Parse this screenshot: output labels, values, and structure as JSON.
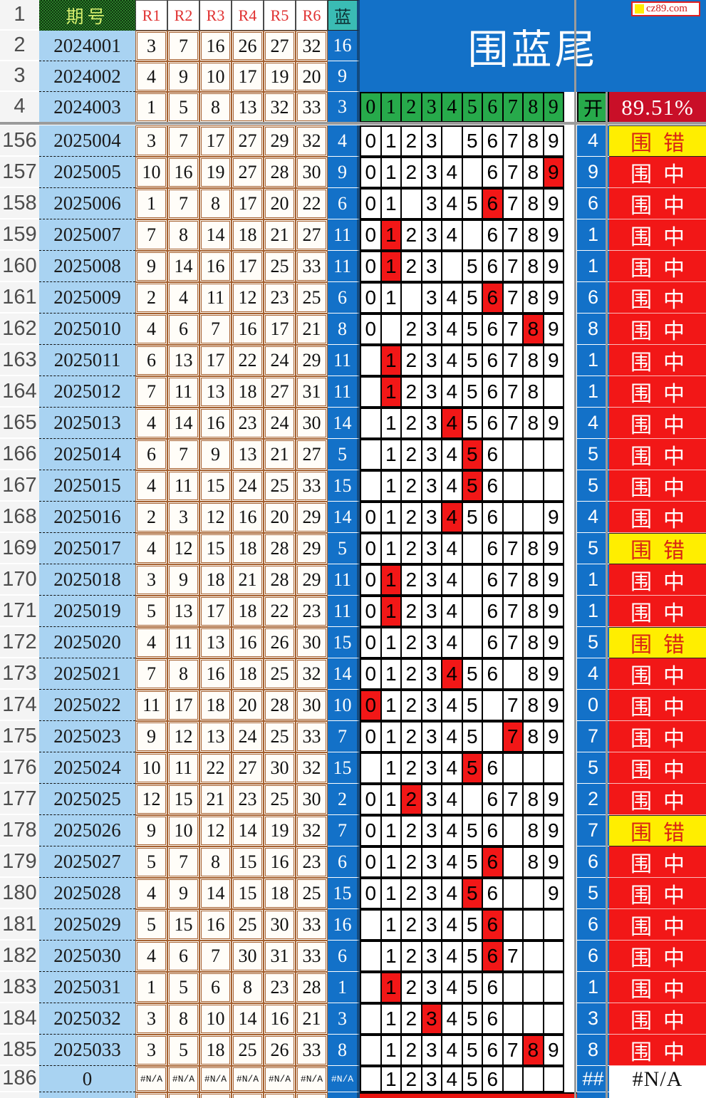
{
  "watermark": "cz89.com",
  "title": "围蓝尾",
  "stats": {
    "accuracy": "89.51%"
  },
  "header": {
    "row_number": "1",
    "period_label": "期号",
    "red_labels": [
      "R1",
      "R2",
      "R3",
      "R4",
      "R5",
      "R6"
    ],
    "blue_label": "蓝",
    "digit_header": [
      "0",
      "1",
      "2",
      "3",
      "4",
      "5",
      "6",
      "7",
      "8",
      "9"
    ],
    "open_label": "开"
  },
  "colors": {
    "banner_blue": "#1371c8",
    "cell_blue": "#1371c8",
    "teal_header": "#3abcb4",
    "green_row": "#27aa4b",
    "pattern_green": "#2a7f2a",
    "hit_red": "#f21717",
    "accuracy_red": "#c90f28",
    "miss_yellow": "#ffee00",
    "miss_text_red": "#d92413",
    "period_blue": "#a9d3f2",
    "border_brown": "#a5602f"
  },
  "result_labels": {
    "hit": "围中",
    "miss": "围错",
    "na": "#N/A"
  },
  "top_rows": [
    {
      "row": "2",
      "period": "2024001",
      "reds": [
        "3",
        "7",
        "16",
        "26",
        "27",
        "32"
      ],
      "blue": "16"
    },
    {
      "row": "3",
      "period": "2024002",
      "reds": [
        "4",
        "9",
        "10",
        "17",
        "19",
        "20"
      ],
      "blue": "9"
    },
    {
      "row": "4",
      "period": "2024003",
      "reds": [
        "1",
        "5",
        "8",
        "13",
        "32",
        "33"
      ],
      "blue": "3"
    }
  ],
  "rows": [
    {
      "row": "156",
      "period": "2025004",
      "reds": [
        "3",
        "7",
        "17",
        "27",
        "29",
        "32"
      ],
      "blue": "4",
      "digits": [
        0,
        1,
        2,
        3,
        5,
        6,
        7,
        8,
        9
      ],
      "hit": null,
      "open": "4",
      "result": "围错",
      "type": "miss"
    },
    {
      "row": "157",
      "period": "2025005",
      "reds": [
        "10",
        "16",
        "19",
        "27",
        "28",
        "30"
      ],
      "blue": "9",
      "digits": [
        0,
        1,
        2,
        3,
        4,
        6,
        7,
        8,
        9
      ],
      "hit": 9,
      "open": "9",
      "result": "围中",
      "type": "hit"
    },
    {
      "row": "158",
      "period": "2025006",
      "reds": [
        "1",
        "7",
        "8",
        "17",
        "20",
        "22"
      ],
      "blue": "6",
      "digits": [
        0,
        1,
        3,
        4,
        5,
        6,
        7,
        8,
        9
      ],
      "hit": 6,
      "open": "6",
      "result": "围中",
      "type": "hit"
    },
    {
      "row": "159",
      "period": "2025007",
      "reds": [
        "7",
        "8",
        "14",
        "18",
        "21",
        "27"
      ],
      "blue": "11",
      "digits": [
        0,
        1,
        2,
        3,
        4,
        6,
        7,
        8,
        9
      ],
      "hit": 1,
      "open": "1",
      "result": "围中",
      "type": "hit"
    },
    {
      "row": "160",
      "period": "2025008",
      "reds": [
        "9",
        "14",
        "16",
        "17",
        "25",
        "33"
      ],
      "blue": "11",
      "digits": [
        0,
        1,
        2,
        3,
        5,
        6,
        7,
        8,
        9
      ],
      "hit": 1,
      "open": "1",
      "result": "围中",
      "type": "hit"
    },
    {
      "row": "161",
      "period": "2025009",
      "reds": [
        "2",
        "4",
        "11",
        "12",
        "23",
        "25"
      ],
      "blue": "6",
      "digits": [
        0,
        1,
        3,
        4,
        5,
        6,
        7,
        8,
        9
      ],
      "hit": 6,
      "open": "6",
      "result": "围中",
      "type": "hit"
    },
    {
      "row": "162",
      "period": "2025010",
      "reds": [
        "4",
        "6",
        "7",
        "16",
        "17",
        "21"
      ],
      "blue": "8",
      "digits": [
        0,
        2,
        3,
        4,
        5,
        6,
        7,
        8,
        9
      ],
      "hit": 8,
      "open": "8",
      "result": "围中",
      "type": "hit"
    },
    {
      "row": "163",
      "period": "2025011",
      "reds": [
        "6",
        "13",
        "17",
        "22",
        "24",
        "29"
      ],
      "blue": "11",
      "digits": [
        1,
        2,
        3,
        4,
        5,
        6,
        7,
        8,
        9
      ],
      "hit": 1,
      "open": "1",
      "result": "围中",
      "type": "hit"
    },
    {
      "row": "164",
      "period": "2025012",
      "reds": [
        "7",
        "11",
        "13",
        "18",
        "27",
        "31"
      ],
      "blue": "11",
      "digits": [
        1,
        2,
        3,
        4,
        5,
        6,
        7,
        8
      ],
      "hit": 1,
      "open": "1",
      "result": "围中",
      "type": "hit"
    },
    {
      "row": "165",
      "period": "2025013",
      "reds": [
        "4",
        "14",
        "16",
        "23",
        "24",
        "30"
      ],
      "blue": "14",
      "digits": [
        1,
        2,
        3,
        4,
        5,
        6,
        7,
        8,
        9
      ],
      "hit": 4,
      "open": "4",
      "result": "围中",
      "type": "hit"
    },
    {
      "row": "166",
      "period": "2025014",
      "reds": [
        "6",
        "7",
        "9",
        "13",
        "21",
        "27"
      ],
      "blue": "5",
      "digits": [
        1,
        2,
        3,
        4,
        5,
        6
      ],
      "hit": 5,
      "open": "5",
      "result": "围中",
      "type": "hit"
    },
    {
      "row": "167",
      "period": "2025015",
      "reds": [
        "4",
        "11",
        "15",
        "24",
        "25",
        "33"
      ],
      "blue": "15",
      "digits": [
        1,
        2,
        3,
        4,
        5,
        6
      ],
      "hit": 5,
      "open": "5",
      "result": "围中",
      "type": "hit"
    },
    {
      "row": "168",
      "period": "2025016",
      "reds": [
        "2",
        "3",
        "12",
        "16",
        "20",
        "29"
      ],
      "blue": "14",
      "digits": [
        0,
        1,
        2,
        3,
        4,
        5,
        6,
        9
      ],
      "hit": 4,
      "open": "4",
      "result": "围中",
      "type": "hit"
    },
    {
      "row": "169",
      "period": "2025017",
      "reds": [
        "4",
        "12",
        "15",
        "18",
        "28",
        "29"
      ],
      "blue": "5",
      "digits": [
        0,
        1,
        2,
        3,
        4,
        6,
        7,
        8,
        9
      ],
      "hit": null,
      "open": "5",
      "result": "围错",
      "type": "miss"
    },
    {
      "row": "170",
      "period": "2025018",
      "reds": [
        "3",
        "9",
        "18",
        "21",
        "28",
        "29"
      ],
      "blue": "11",
      "digits": [
        0,
        1,
        2,
        3,
        4,
        6,
        7,
        8,
        9
      ],
      "hit": 1,
      "open": "1",
      "result": "围中",
      "type": "hit"
    },
    {
      "row": "171",
      "period": "2025019",
      "reds": [
        "5",
        "13",
        "17",
        "18",
        "22",
        "23"
      ],
      "blue": "11",
      "digits": [
        0,
        1,
        2,
        3,
        4,
        6,
        7,
        8,
        9
      ],
      "hit": 1,
      "open": "1",
      "result": "围中",
      "type": "hit"
    },
    {
      "row": "172",
      "period": "2025020",
      "reds": [
        "4",
        "11",
        "13",
        "16",
        "26",
        "30"
      ],
      "blue": "15",
      "digits": [
        0,
        1,
        2,
        3,
        4,
        6,
        7,
        8,
        9
      ],
      "hit": null,
      "open": "5",
      "result": "围错",
      "type": "miss"
    },
    {
      "row": "173",
      "period": "2025021",
      "reds": [
        "7",
        "8",
        "16",
        "18",
        "25",
        "32"
      ],
      "blue": "14",
      "digits": [
        0,
        1,
        2,
        3,
        4,
        5,
        6,
        8,
        9
      ],
      "hit": 4,
      "open": "4",
      "result": "围中",
      "type": "hit"
    },
    {
      "row": "174",
      "period": "2025022",
      "reds": [
        "11",
        "17",
        "18",
        "20",
        "28",
        "30"
      ],
      "blue": "10",
      "digits": [
        0,
        1,
        2,
        3,
        4,
        5,
        7,
        8,
        9
      ],
      "hit": 0,
      "open": "0",
      "result": "围中",
      "type": "hit"
    },
    {
      "row": "175",
      "period": "2025023",
      "reds": [
        "9",
        "12",
        "13",
        "24",
        "25",
        "33"
      ],
      "blue": "7",
      "digits": [
        0,
        1,
        2,
        3,
        4,
        5,
        7,
        8,
        9
      ],
      "hit": 7,
      "open": "7",
      "result": "围中",
      "type": "hit"
    },
    {
      "row": "176",
      "period": "2025024",
      "reds": [
        "10",
        "11",
        "22",
        "27",
        "30",
        "32"
      ],
      "blue": "15",
      "digits": [
        1,
        2,
        3,
        4,
        5,
        6
      ],
      "hit": 5,
      "open": "5",
      "result": "围中",
      "type": "hit"
    },
    {
      "row": "177",
      "period": "2025025",
      "reds": [
        "12",
        "15",
        "21",
        "23",
        "25",
        "30"
      ],
      "blue": "2",
      "digits": [
        0,
        1,
        2,
        3,
        4,
        6,
        7,
        8,
        9
      ],
      "hit": 2,
      "open": "2",
      "result": "围中",
      "type": "hit"
    },
    {
      "row": "178",
      "period": "2025026",
      "reds": [
        "9",
        "10",
        "12",
        "14",
        "19",
        "32"
      ],
      "blue": "7",
      "digits": [
        0,
        1,
        2,
        3,
        4,
        5,
        6,
        8,
        9
      ],
      "hit": null,
      "open": "7",
      "result": "围错",
      "type": "miss"
    },
    {
      "row": "179",
      "period": "2025027",
      "reds": [
        "5",
        "7",
        "8",
        "15",
        "16",
        "23"
      ],
      "blue": "6",
      "digits": [
        0,
        1,
        2,
        3,
        4,
        5,
        6,
        8,
        9
      ],
      "hit": 6,
      "open": "6",
      "result": "围中",
      "type": "hit"
    },
    {
      "row": "180",
      "period": "2025028",
      "reds": [
        "4",
        "9",
        "14",
        "15",
        "18",
        "25"
      ],
      "blue": "15",
      "digits": [
        0,
        1,
        2,
        3,
        4,
        5,
        6,
        9
      ],
      "hit": 5,
      "open": "5",
      "result": "围中",
      "type": "hit"
    },
    {
      "row": "181",
      "period": "2025029",
      "reds": [
        "5",
        "15",
        "16",
        "25",
        "30",
        "33"
      ],
      "blue": "16",
      "digits": [
        1,
        2,
        3,
        4,
        5,
        6
      ],
      "hit": 6,
      "open": "6",
      "result": "围中",
      "type": "hit"
    },
    {
      "row": "182",
      "period": "2025030",
      "reds": [
        "4",
        "6",
        "7",
        "30",
        "31",
        "33"
      ],
      "blue": "6",
      "digits": [
        1,
        2,
        3,
        4,
        5,
        6,
        7
      ],
      "hit": 6,
      "open": "6",
      "result": "围中",
      "type": "hit"
    },
    {
      "row": "183",
      "period": "2025031",
      "reds": [
        "1",
        "5",
        "6",
        "8",
        "23",
        "28"
      ],
      "blue": "1",
      "digits": [
        1,
        2,
        3,
        4,
        5,
        6
      ],
      "hit": 1,
      "open": "1",
      "result": "围中",
      "type": "hit"
    },
    {
      "row": "184",
      "period": "2025032",
      "reds": [
        "3",
        "8",
        "10",
        "14",
        "16",
        "21"
      ],
      "blue": "3",
      "digits": [
        1,
        2,
        3,
        4,
        5,
        6
      ],
      "hit": 3,
      "open": "3",
      "result": "围中",
      "type": "hit"
    },
    {
      "row": "185",
      "period": "2025033",
      "reds": [
        "3",
        "5",
        "18",
        "25",
        "26",
        "33"
      ],
      "blue": "8",
      "digits": [
        1,
        2,
        3,
        4,
        5,
        6,
        7,
        8,
        9
      ],
      "hit": 8,
      "open": "8",
      "result": "围中",
      "type": "hit"
    },
    {
      "row": "186",
      "period": "0",
      "reds": [
        "#N/A",
        "#N/A",
        "#N/A",
        "#N/A",
        "#N/A",
        "#N/A"
      ],
      "blue": "#N/A",
      "digits": [
        1,
        2,
        3,
        4,
        5,
        6
      ],
      "hit": null,
      "open": "##",
      "result": "#N/A",
      "type": "na"
    }
  ]
}
